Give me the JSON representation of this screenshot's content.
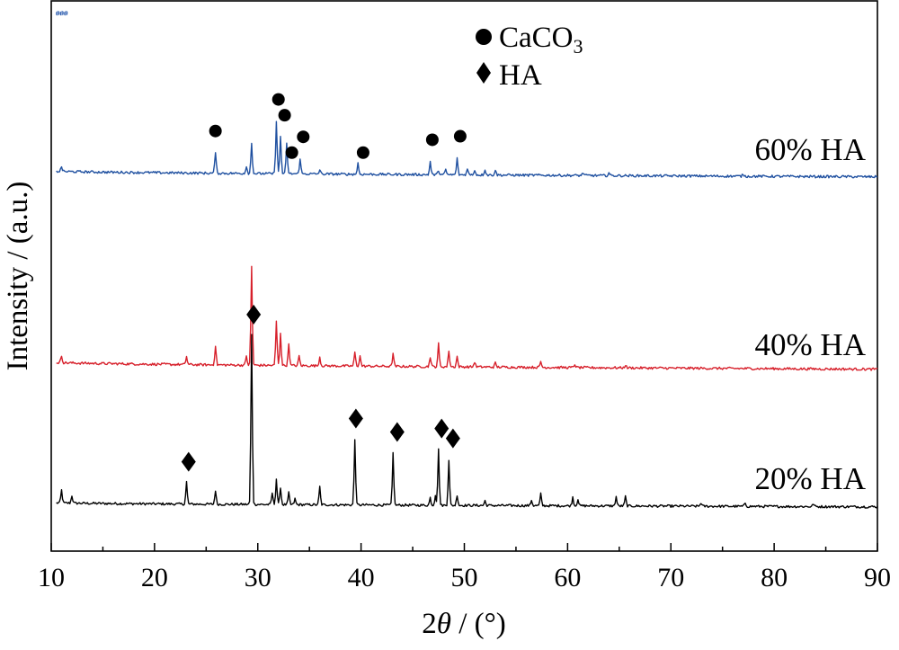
{
  "corner_mark": "ፀፀፀ",
  "chart_data": {
    "type": "line",
    "xlabel_prefix": "2",
    "xlabel_theta": "θ",
    "xlabel_suffix": " / (°)",
    "ylabel": "Intensity / (a.u.)",
    "xlim": [
      10,
      90
    ],
    "x_ticks": [
      "10",
      "20",
      "30",
      "40",
      "50",
      "60",
      "70",
      "80",
      "90"
    ],
    "y_ticks_shown": false,
    "legend": {
      "placement": "top-center",
      "entries": [
        {
          "marker": "circle",
          "label": "CaCO",
          "sub": "3"
        },
        {
          "marker": "diamond",
          "label": "HA"
        }
      ]
    },
    "series": [
      {
        "name": "20% HA",
        "color": "#000000",
        "baseline_start": 0.9,
        "baseline_end": 0.2,
        "peaks": [
          [
            11,
            2.2
          ],
          [
            12,
            1.3
          ],
          [
            23.1,
            3.8
          ],
          [
            25.9,
            2.4
          ],
          [
            29.4,
            29.0
          ],
          [
            31.4,
            2.0
          ],
          [
            31.8,
            4.4
          ],
          [
            32.2,
            3.0
          ],
          [
            33.0,
            2.0
          ],
          [
            33.6,
            1.0
          ],
          [
            36.0,
            3.1
          ],
          [
            39.4,
            11.2
          ],
          [
            43.1,
            8.9
          ],
          [
            46.7,
            1.3
          ],
          [
            47.2,
            1.8
          ],
          [
            47.5,
            9.5
          ],
          [
            48.5,
            7.8
          ],
          [
            49.3,
            1.8
          ],
          [
            52.0,
            0.8
          ],
          [
            56.5,
            1.0
          ],
          [
            57.4,
            2.0
          ],
          [
            60.5,
            1.5
          ],
          [
            61.0,
            1.2
          ],
          [
            64.7,
            1.6
          ],
          [
            65.6,
            1.6
          ],
          [
            72.9,
            0.6
          ],
          [
            77.2,
            0.6
          ],
          [
            83.8,
            0.5
          ]
        ],
        "markers": [
          {
            "x": 23.3,
            "type": "diamond"
          },
          {
            "x": 29.6,
            "type": "diamond"
          },
          {
            "x": 39.5,
            "type": "diamond"
          },
          {
            "x": 43.5,
            "type": "diamond"
          },
          {
            "x": 47.8,
            "type": "diamond"
          },
          {
            "x": 48.9,
            "type": "diamond"
          }
        ]
      },
      {
        "name": "40% HA",
        "color": "#d7202b",
        "baseline_start": 1.4,
        "baseline_end": 0.2,
        "peaks": [
          [
            11,
            1.2
          ],
          [
            23.1,
            1.4
          ],
          [
            25.9,
            3.3
          ],
          [
            28.9,
            1.6
          ],
          [
            29.4,
            16.9
          ],
          [
            31.8,
            7.6
          ],
          [
            32.2,
            5.6
          ],
          [
            33.0,
            3.8
          ],
          [
            34.0,
            1.7
          ],
          [
            36.0,
            1.5
          ],
          [
            39.4,
            2.4
          ],
          [
            39.9,
            1.8
          ],
          [
            43.1,
            2.2
          ],
          [
            46.7,
            1.7
          ],
          [
            47.5,
            3.9
          ],
          [
            48.5,
            2.8
          ],
          [
            49.3,
            1.8
          ],
          [
            51.0,
            0.9
          ],
          [
            53.0,
            0.7
          ],
          [
            57.4,
            1.0
          ],
          [
            60.7,
            0.6
          ],
          [
            65.6,
            0.5
          ]
        ],
        "markers": []
      },
      {
        "name": "60% HA",
        "color": "#1f50a0",
        "baseline_start": 1.2,
        "baseline_end": 0.2,
        "peaks": [
          [
            11,
            0.8
          ],
          [
            25.9,
            3.7
          ],
          [
            28.9,
            1.3
          ],
          [
            29.4,
            5.2
          ],
          [
            31.8,
            9.1
          ],
          [
            32.2,
            6.4
          ],
          [
            32.8,
            5.1
          ],
          [
            34.1,
            2.7
          ],
          [
            36.0,
            0.7
          ],
          [
            39.7,
            1.9
          ],
          [
            46.7,
            2.2
          ],
          [
            47.5,
            0.8
          ],
          [
            48.2,
            0.9
          ],
          [
            49.3,
            2.8
          ],
          [
            50.3,
            1.2
          ],
          [
            51.0,
            0.9
          ],
          [
            52.0,
            1.0
          ],
          [
            53.0,
            0.9
          ],
          [
            61.5,
            0.5
          ],
          [
            64.0,
            0.5
          ],
          [
            77.0,
            0.4
          ]
        ],
        "markers": [
          {
            "x": 25.9,
            "type": "circle"
          },
          {
            "x": 32.0,
            "type": "circle"
          },
          {
            "x": 32.6,
            "type": "circle"
          },
          {
            "x": 33.3,
            "type": "circle"
          },
          {
            "x": 34.4,
            "type": "circle"
          },
          {
            "x": 40.2,
            "type": "circle"
          },
          {
            "x": 46.9,
            "type": "circle"
          },
          {
            "x": 49.6,
            "type": "circle"
          }
        ]
      }
    ]
  }
}
